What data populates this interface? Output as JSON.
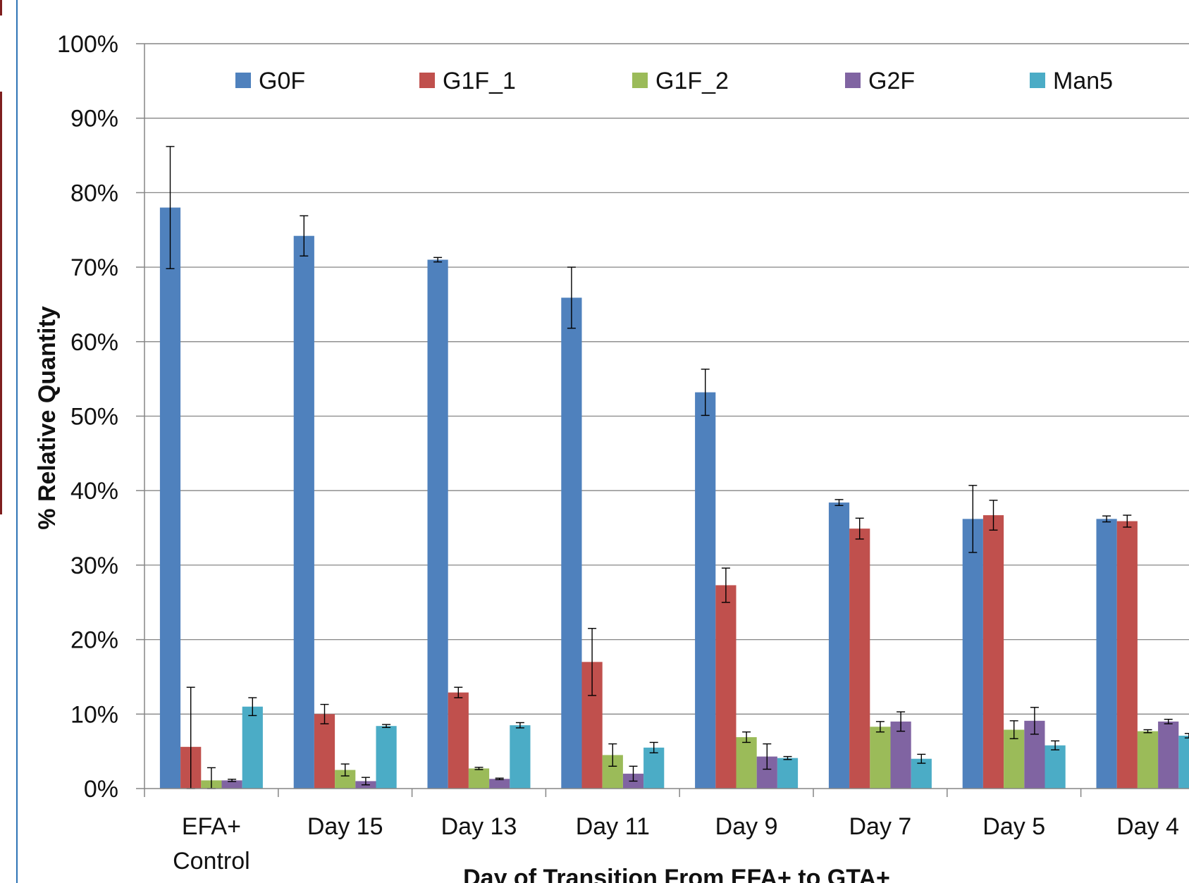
{
  "chart_data": {
    "type": "bar",
    "title": "",
    "ylabel": "% Relative Quantity",
    "xlabel": "Day of Transition From EFA+ to GTA+",
    "ylim": [
      0,
      100
    ],
    "y_ticks": [
      "0%",
      "10%",
      "20%",
      "30%",
      "40%",
      "50%",
      "60%",
      "70%",
      "80%",
      "90%",
      "100%"
    ],
    "grid": true,
    "legend_position": "top",
    "categories": [
      [
        "EFA+",
        "Control"
      ],
      [
        "Day 15"
      ],
      [
        "Day 13"
      ],
      [
        "Day 11"
      ],
      [
        "Day 9"
      ],
      [
        "Day 7"
      ],
      [
        "Day 5"
      ],
      [
        "Day 4"
      ]
    ],
    "series": [
      {
        "name": "G0F",
        "color": "#4F81BD",
        "values": [
          78.0,
          74.2,
          71.0,
          65.9,
          53.2,
          38.4,
          36.2,
          36.2
        ],
        "errors": [
          8.2,
          2.7,
          0.3,
          4.1,
          3.1,
          0.4,
          4.5,
          0.4
        ]
      },
      {
        "name": "G1F_1",
        "color": "#C0504D",
        "values": [
          5.6,
          10.0,
          12.9,
          17.0,
          27.3,
          34.9,
          36.7,
          35.9
        ],
        "errors": [
          8.0,
          1.3,
          0.7,
          4.5,
          2.3,
          1.4,
          2.0,
          0.8
        ]
      },
      {
        "name": "G1F_2",
        "color": "#9BBB59",
        "values": [
          1.1,
          2.5,
          2.7,
          4.5,
          6.9,
          8.3,
          7.9,
          7.7
        ],
        "errors": [
          1.7,
          0.8,
          0.15,
          1.5,
          0.7,
          0.7,
          1.2,
          0.2
        ]
      },
      {
        "name": "G2F",
        "color": "#8064A2",
        "values": [
          1.1,
          1.0,
          1.3,
          2.0,
          4.3,
          9.0,
          9.1,
          9.0
        ],
        "errors": [
          0.15,
          0.5,
          0.1,
          1.0,
          1.7,
          1.3,
          1.8,
          0.3
        ]
      },
      {
        "name": "Man5",
        "color": "#4BACC6",
        "values": [
          11.0,
          8.4,
          8.5,
          5.5,
          4.1,
          4.0,
          5.8,
          7.1
        ],
        "errors": [
          1.2,
          0.2,
          0.35,
          0.7,
          0.2,
          0.6,
          0.6,
          0.3
        ]
      }
    ]
  },
  "frame": {
    "left_rule_color": "#2E74B5",
    "left_accent_color": "#7F1F1F"
  }
}
